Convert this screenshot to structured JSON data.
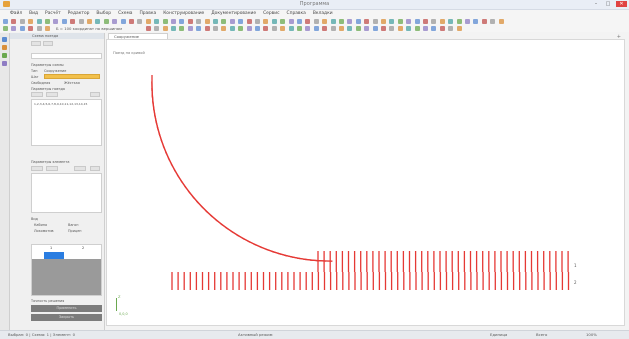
{
  "app": {
    "title": "Программа"
  },
  "menu": [
    "Файл",
    "Вид",
    "Расчёт",
    "Редактор",
    "Выбор",
    "Схема",
    "Правка",
    "Конструирование",
    "Документирование",
    "Сервис",
    "Справка",
    "Вкладки"
  ],
  "toolbar": {
    "coords_text": "Б = 100 координат по вершинам"
  },
  "document": {
    "tab_label": "Сооружение",
    "breadcrumb": "Поезд на кривой"
  },
  "panel": {
    "header": "Схема поезда",
    "section1_label": "Параметры схемы",
    "field_label_1": "Тип",
    "field_value_1": "Сооружение",
    "field_label_2": "Шаг",
    "radio1": "Свободная",
    "radio2": "Жёсткая",
    "section2_label": "Параметры поезда",
    "list_text": "1,2,3,4,5,6,7,8,9,10,11,12,13,14,15",
    "section3_label": "Параметры элемента",
    "section4_label": "Вид",
    "opt1": "Кабина",
    "opt2": "Вагон",
    "opt3": "Локомотив",
    "opt4": "Прицеп",
    "grid_col1": "1",
    "grid_col2": "2",
    "bottom_label": "Точность решения",
    "btn_apply": "Применить",
    "btn_close": "Закрыть"
  },
  "canvas": {
    "label_upper": "1",
    "label_lower": "2",
    "axis_label": "Z",
    "coords": "0,0,0"
  },
  "status": {
    "left": "Выбран: 0 | Схема: 1 | Элемент: 0",
    "center": "Активный режим",
    "right1": "Единица",
    "right2": "Всего",
    "right3": "100%"
  },
  "colors": {
    "rail": "#e53935",
    "accent_bar": "#f2c04b",
    "selection": "#2a7de1"
  }
}
